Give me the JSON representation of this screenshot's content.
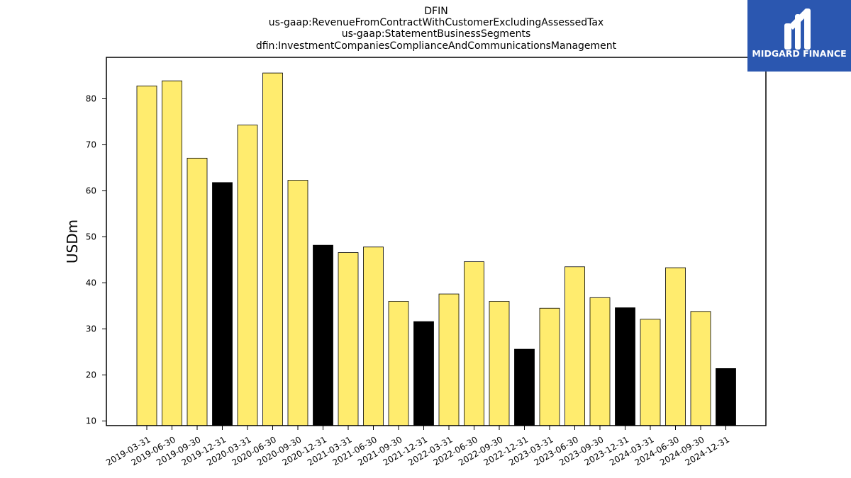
{
  "logo": {
    "name": "MIDGARD FINANCE",
    "bg_color": "#2b57b0",
    "icon": "midgard-monogram-icon"
  },
  "colors": {
    "regular_bar": "#ffec6e",
    "year_end_bar": "#000000",
    "bar_edge": "#000000"
  },
  "chart_data": {
    "type": "bar",
    "title_lines": [
      "DFIN",
      "us-gaap:RevenueFromContractWithCustomerExcludingAssessedTax",
      "us-gaap:StatementBusinessSegments",
      "dfin:InvestmentCompaniesComplianceAndCommunicationsManagement"
    ],
    "xlabel": "",
    "ylabel": "USDm",
    "ylim": [
      9,
      89
    ],
    "yticks": [
      10,
      20,
      30,
      40,
      50,
      60,
      70,
      80
    ],
    "grid": false,
    "categories": [
      "2019-03-31",
      "2019-06-30",
      "2019-09-30",
      "2019-12-31",
      "2020-03-31",
      "2020-06-30",
      "2020-09-30",
      "2020-12-31",
      "2021-03-31",
      "2021-06-30",
      "2021-09-30",
      "2021-12-31",
      "2022-03-31",
      "2022-06-30",
      "2022-09-30",
      "2022-12-31",
      "2023-03-31",
      "2023-06-30",
      "2023-09-30",
      "2023-12-31",
      "2024-03-31",
      "2024-06-30",
      "2024-09-30",
      "2024-12-31"
    ],
    "values": [
      82.8,
      83.9,
      67.1,
      61.8,
      74.3,
      85.6,
      62.3,
      48.2,
      46.6,
      47.8,
      36.0,
      31.6,
      37.6,
      44.6,
      36.0,
      25.6,
      34.5,
      43.5,
      36.8,
      34.6,
      32.1,
      43.3,
      33.8,
      21.4
    ],
    "year_end": [
      false,
      false,
      false,
      true,
      false,
      false,
      false,
      true,
      false,
      false,
      false,
      true,
      false,
      false,
      false,
      true,
      false,
      false,
      false,
      true,
      false,
      false,
      false,
      true
    ]
  }
}
